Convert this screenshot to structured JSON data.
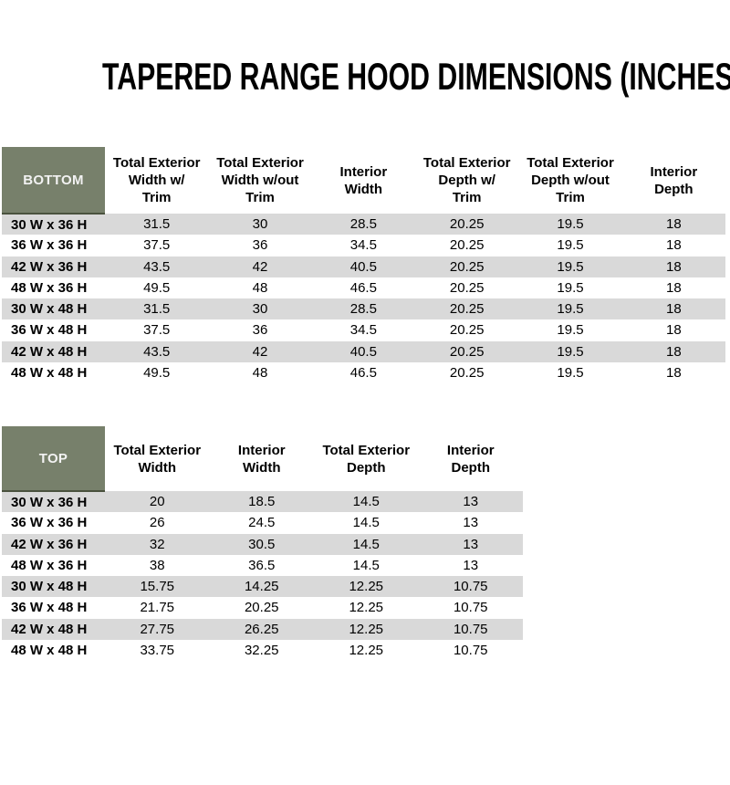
{
  "title": "TAPERED RANGE HOOD DIMENSIONS (INCHES)",
  "colors": {
    "background": "#FFFFFF",
    "text": "#000000",
    "header_fill": "#77806B",
    "header_text": "#F2F2F2",
    "header_border": "#4A523E",
    "stripe": "#D9D9D9"
  },
  "chart_data": [
    {
      "type": "table",
      "name": "BOTTOM",
      "columns": [
        "Total Exterior Width w/ Trim",
        "Total Exterior Width w/out Trim",
        "Interior Width",
        "Total Exterior Depth w/ Trim",
        "Total Exterior Depth w/out Trim",
        "Interior Depth"
      ],
      "columns_wrapped": [
        "Total Exterior\nWidth w/\nTrim",
        "Total Exterior\nWidth w/out\nTrim",
        "Interior\nWidth",
        "Total Exterior\nDepth w/\nTrim",
        "Total Exterior\nDepth w/out\nTrim",
        "Interior\nDepth"
      ],
      "rows": [
        [
          "30 W x 36 H",
          "31.5",
          "30",
          "28.5",
          "20.25",
          "19.5",
          "18"
        ],
        [
          "36 W x 36 H",
          "37.5",
          "36",
          "34.5",
          "20.25",
          "19.5",
          "18"
        ],
        [
          "42 W x 36 H",
          "43.5",
          "42",
          "40.5",
          "20.25",
          "19.5",
          "18"
        ],
        [
          "48 W x 36 H",
          "49.5",
          "48",
          "46.5",
          "20.25",
          "19.5",
          "18"
        ],
        [
          "30 W x 48 H",
          "31.5",
          "30",
          "28.5",
          "20.25",
          "19.5",
          "18"
        ],
        [
          "36 W x 48 H",
          "37.5",
          "36",
          "34.5",
          "20.25",
          "19.5",
          "18"
        ],
        [
          "42 W x 48 H",
          "43.5",
          "42",
          "40.5",
          "20.25",
          "19.5",
          "18"
        ],
        [
          "48 W x 48 H",
          "49.5",
          "48",
          "46.5",
          "20.25",
          "19.5",
          "18"
        ]
      ]
    },
    {
      "type": "table",
      "name": "TOP",
      "columns": [
        "Total Exterior Width",
        "Interior Width",
        "Total Exterior Depth",
        "Interior Depth"
      ],
      "columns_wrapped": [
        "Total Exterior\nWidth",
        "Interior\nWidth",
        "Total Exterior\nDepth",
        "Interior\nDepth"
      ],
      "rows": [
        [
          "30 W x 36 H",
          "20",
          "18.5",
          "14.5",
          "13"
        ],
        [
          "36 W x 36 H",
          "26",
          "24.5",
          "14.5",
          "13"
        ],
        [
          "42 W x 36 H",
          "32",
          "30.5",
          "14.5",
          "13"
        ],
        [
          "48 W x 36 H",
          "38",
          "36.5",
          "14.5",
          "13"
        ],
        [
          "30 W x 48 H",
          "15.75",
          "14.25",
          "12.25",
          "10.75"
        ],
        [
          "36 W x 48 H",
          "21.75",
          "20.25",
          "12.25",
          "10.75"
        ],
        [
          "42 W x 48 H",
          "27.75",
          "26.25",
          "12.25",
          "10.75"
        ],
        [
          "48 W x 48 H",
          "33.75",
          "32.25",
          "12.25",
          "10.75"
        ]
      ]
    }
  ]
}
